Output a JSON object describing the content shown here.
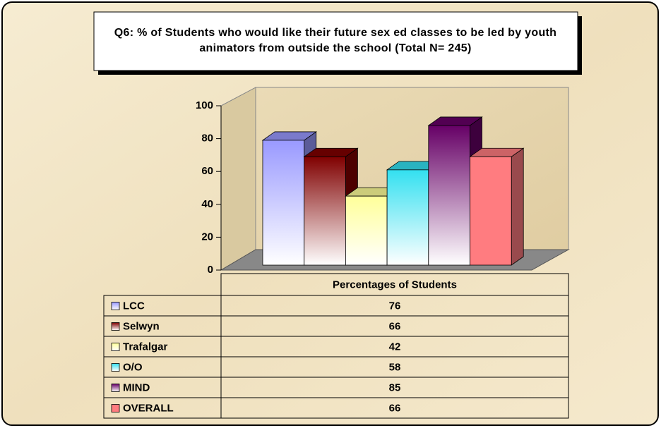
{
  "chart_data": {
    "type": "bar",
    "title": "Q6: % of Students who would like their future sex ed classes to be led by youth animators from outside the school (Total N= 245)",
    "categories": [
      "Percentages of Students"
    ],
    "series": [
      {
        "name": "LCC",
        "color": "#9999ff",
        "values": [
          76
        ]
      },
      {
        "name": "Selwyn",
        "color": "#800000",
        "values": [
          66
        ]
      },
      {
        "name": "Trafalgar",
        "color": "#ffff99",
        "values": [
          42
        ]
      },
      {
        "name": "O/O",
        "color": "#33e0f0",
        "values": [
          58
        ]
      },
      {
        "name": "MIND",
        "color": "#660066",
        "values": [
          85
        ]
      },
      {
        "name": "OVERALL",
        "color": "#ff7c80",
        "values": [
          66
        ]
      }
    ],
    "ylim": [
      0,
      100
    ],
    "yticks": [
      0,
      20,
      40,
      60,
      80,
      100
    ]
  }
}
